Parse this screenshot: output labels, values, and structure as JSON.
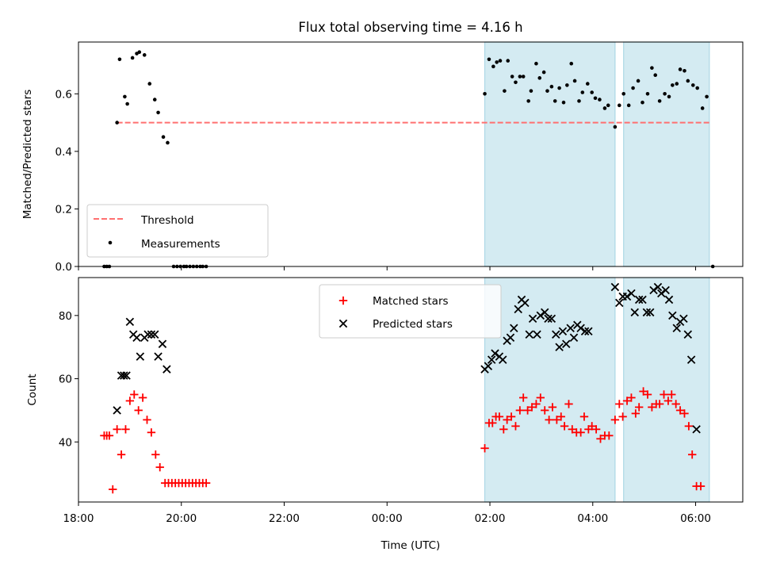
{
  "chart_data": {
    "title": "Flux total observing time = 4.16 h",
    "xlabel": "Time (UTC)",
    "xlim": [
      "18:00",
      "06:55"
    ],
    "x_ticks": [
      "18:00",
      "20:00",
      "22:00",
      "00:00",
      "02:00",
      "04:00",
      "06:00"
    ],
    "shaded_intervals": [
      [
        "01:54",
        "04:26"
      ],
      [
        "04:36",
        "06:16"
      ]
    ],
    "colors": {
      "shade": "#add8e6",
      "threshold": "#ff7070",
      "matched": "#ff0000",
      "predicted": "#000000",
      "measurements": "#000000"
    },
    "panels": [
      {
        "type": "scatter",
        "ylabel": "Matched/Predicted stars",
        "ylim": [
          0,
          0.78
        ],
        "y_ticks": [
          "0.0",
          "0.2",
          "0.4",
          "0.6"
        ],
        "legend_position": "lower-left",
        "threshold": {
          "name": "Threshold",
          "value": 0.5,
          "x_range": [
            "18:45",
            "06:16"
          ]
        },
        "series": [
          {
            "name": "Measurements",
            "points": [
              [
                "18:30",
                0
              ],
              [
                "18:33",
                0
              ],
              [
                "18:36",
                0
              ],
              [
                "18:45",
                0.5
              ],
              [
                "18:48",
                0.72
              ],
              [
                "18:54",
                0.59
              ],
              [
                "18:57",
                0.565
              ],
              [
                "19:03",
                0.725
              ],
              [
                "19:08",
                0.74
              ],
              [
                "19:11",
                0.745
              ],
              [
                "19:17",
                0.735
              ],
              [
                "19:23",
                0.635
              ],
              [
                "19:29",
                0.58
              ],
              [
                "19:33",
                0.535
              ],
              [
                "19:39",
                0.45
              ],
              [
                "19:44",
                0.43
              ],
              [
                "19:51",
                0
              ],
              [
                "19:55",
                0
              ],
              [
                "19:59",
                0
              ],
              [
                "20:03",
                0
              ],
              [
                "20:06",
                0
              ],
              [
                "20:10",
                0
              ],
              [
                "20:14",
                0
              ],
              [
                "20:18",
                0
              ],
              [
                "20:22",
                0
              ],
              [
                "20:25",
                0
              ],
              [
                "20:29",
                0
              ],
              [
                "01:54",
                0.6
              ],
              [
                "01:59",
                0.72
              ],
              [
                "02:04",
                0.695
              ],
              [
                "02:08",
                0.71
              ],
              [
                "02:12",
                0.715
              ],
              [
                "02:17",
                0.61
              ],
              [
                "02:21",
                0.715
              ],
              [
                "02:26",
                0.66
              ],
              [
                "02:30",
                0.64
              ],
              [
                "02:35",
                0.66
              ],
              [
                "02:39",
                0.66
              ],
              [
                "02:45",
                0.575
              ],
              [
                "02:48",
                0.61
              ],
              [
                "02:54",
                0.705
              ],
              [
                "02:58",
                0.655
              ],
              [
                "03:03",
                0.675
              ],
              [
                "03:07",
                0.61
              ],
              [
                "03:12",
                0.625
              ],
              [
                "03:16",
                0.575
              ],
              [
                "03:21",
                0.62
              ],
              [
                "03:26",
                0.57
              ],
              [
                "03:30",
                0.63
              ],
              [
                "03:35",
                0.705
              ],
              [
                "03:39",
                0.645
              ],
              [
                "03:44",
                0.575
              ],
              [
                "03:48",
                0.605
              ],
              [
                "03:54",
                0.635
              ],
              [
                "03:59",
                0.605
              ],
              [
                "04:03",
                0.585
              ],
              [
                "04:08",
                0.58
              ],
              [
                "04:14",
                0.55
              ],
              [
                "04:18",
                0.56
              ],
              [
                "04:26",
                0.485
              ],
              [
                "04:31",
                0.56
              ],
              [
                "04:36",
                0.6
              ],
              [
                "04:42",
                0.56
              ],
              [
                "04:47",
                0.62
              ],
              [
                "04:53",
                0.645
              ],
              [
                "04:58",
                0.57
              ],
              [
                "05:04",
                0.6
              ],
              [
                "05:09",
                0.69
              ],
              [
                "05:13",
                0.665
              ],
              [
                "05:18",
                0.575
              ],
              [
                "05:24",
                0.6
              ],
              [
                "05:29",
                0.59
              ],
              [
                "05:33",
                0.63
              ],
              [
                "05:38",
                0.635
              ],
              [
                "05:42",
                0.685
              ],
              [
                "05:47",
                0.68
              ],
              [
                "05:51",
                0.645
              ],
              [
                "05:57",
                0.63
              ],
              [
                "06:02",
                0.62
              ],
              [
                "06:08",
                0.55
              ],
              [
                "06:13",
                0.59
              ],
              [
                "06:20",
                0
              ]
            ]
          }
        ]
      },
      {
        "type": "scatter",
        "ylabel": "Count",
        "ylim": [
          21,
          92
        ],
        "y_ticks": [
          "40",
          "60",
          "80"
        ],
        "legend_position": "upper-center",
        "series": [
          {
            "name": "Matched stars",
            "marker": "+",
            "points": [
              [
                "18:30",
                42
              ],
              [
                "18:33",
                42
              ],
              [
                "18:36",
                42
              ],
              [
                "18:40",
                25
              ],
              [
                "18:45",
                44
              ],
              [
                "18:50",
                36
              ],
              [
                "18:55",
                44
              ],
              [
                "19:00",
                53
              ],
              [
                "19:05",
                55
              ],
              [
                "19:10",
                50
              ],
              [
                "19:15",
                54
              ],
              [
                "19:20",
                47
              ],
              [
                "19:25",
                43
              ],
              [
                "19:30",
                36
              ],
              [
                "19:35",
                32
              ],
              [
                "19:41",
                27
              ],
              [
                "19:45",
                27
              ],
              [
                "19:49",
                27
              ],
              [
                "19:53",
                27
              ],
              [
                "19:57",
                27
              ],
              [
                "20:01",
                27
              ],
              [
                "20:05",
                27
              ],
              [
                "20:09",
                27
              ],
              [
                "20:13",
                27
              ],
              [
                "20:17",
                27
              ],
              [
                "20:21",
                27
              ],
              [
                "20:25",
                27
              ],
              [
                "20:29",
                27
              ],
              [
                "01:54",
                38
              ],
              [
                "01:59",
                46
              ],
              [
                "02:03",
                46
              ],
              [
                "02:07",
                48
              ],
              [
                "02:11",
                48
              ],
              [
                "02:16",
                44
              ],
              [
                "02:20",
                47
              ],
              [
                "02:25",
                48
              ],
              [
                "02:30",
                45
              ],
              [
                "02:35",
                50
              ],
              [
                "02:39",
                54
              ],
              [
                "02:44",
                50
              ],
              [
                "02:49",
                51
              ],
              [
                "02:54",
                52
              ],
              [
                "02:59",
                54
              ],
              [
                "03:04",
                50
              ],
              [
                "03:09",
                47
              ],
              [
                "03:13",
                51
              ],
              [
                "03:18",
                47
              ],
              [
                "03:23",
                48
              ],
              [
                "03:27",
                45
              ],
              [
                "03:32",
                52
              ],
              [
                "03:36",
                44
              ],
              [
                "03:41",
                43
              ],
              [
                "03:46",
                43
              ],
              [
                "03:50",
                48
              ],
              [
                "03:55",
                44
              ],
              [
                "03:59",
                45
              ],
              [
                "04:04",
                44
              ],
              [
                "04:09",
                41
              ],
              [
                "04:14",
                42
              ],
              [
                "04:19",
                42
              ],
              [
                "04:26",
                47
              ],
              [
                "04:31",
                52
              ],
              [
                "04:35",
                48
              ],
              [
                "04:40",
                53
              ],
              [
                "04:45",
                54
              ],
              [
                "04:50",
                49
              ],
              [
                "04:54",
                51
              ],
              [
                "04:59",
                56
              ],
              [
                "05:04",
                55
              ],
              [
                "05:09",
                51
              ],
              [
                "05:14",
                52
              ],
              [
                "05:18",
                52
              ],
              [
                "05:23",
                55
              ],
              [
                "05:28",
                53
              ],
              [
                "05:32",
                55
              ],
              [
                "05:37",
                52
              ],
              [
                "05:42",
                50
              ],
              [
                "05:47",
                49
              ],
              [
                "05:52",
                45
              ],
              [
                "05:56",
                36
              ],
              [
                "06:01",
                26
              ],
              [
                "06:06",
                26
              ]
            ]
          },
          {
            "name": "Predicted stars",
            "marker": "x",
            "points": [
              [
                "18:45",
                50
              ],
              [
                "18:50",
                61
              ],
              [
                "18:53",
                61
              ],
              [
                "18:56",
                61
              ],
              [
                "19:00",
                78
              ],
              [
                "19:04",
                74
              ],
              [
                "19:08",
                73
              ],
              [
                "19:12",
                67
              ],
              [
                "19:17",
                73
              ],
              [
                "19:21",
                74
              ],
              [
                "19:25",
                74
              ],
              [
                "19:29",
                74
              ],
              [
                "19:33",
                67
              ],
              [
                "19:38",
                71
              ],
              [
                "19:43",
                63
              ],
              [
                "01:54",
                63
              ],
              [
                "01:58",
                64
              ],
              [
                "02:02",
                66
              ],
              [
                "02:06",
                68
              ],
              [
                "02:11",
                67
              ],
              [
                "02:15",
                66
              ],
              [
                "02:20",
                72
              ],
              [
                "02:24",
                73
              ],
              [
                "02:28",
                76
              ],
              [
                "02:33",
                82
              ],
              [
                "02:37",
                85
              ],
              [
                "02:41",
                84
              ],
              [
                "02:46",
                74
              ],
              [
                "02:50",
                79
              ],
              [
                "02:55",
                74
              ],
              [
                "02:59",
                80
              ],
              [
                "03:04",
                81
              ],
              [
                "03:08",
                79
              ],
              [
                "03:12",
                79
              ],
              [
                "03:17",
                74
              ],
              [
                "03:21",
                70
              ],
              [
                "03:25",
                75
              ],
              [
                "03:29",
                71
              ],
              [
                "03:34",
                76
              ],
              [
                "03:38",
                73
              ],
              [
                "03:42",
                77
              ],
              [
                "03:46",
                76
              ],
              [
                "03:51",
                75
              ],
              [
                "03:55",
                75
              ],
              [
                "04:26",
                89
              ],
              [
                "04:31",
                84
              ],
              [
                "04:35",
                86
              ],
              [
                "04:40",
                86
              ],
              [
                "04:45",
                87
              ],
              [
                "04:49",
                81
              ],
              [
                "04:54",
                85
              ],
              [
                "04:58",
                85
              ],
              [
                "05:03",
                81
              ],
              [
                "05:07",
                81
              ],
              [
                "05:11",
                88
              ],
              [
                "05:16",
                89
              ],
              [
                "05:20",
                87
              ],
              [
                "05:25",
                88
              ],
              [
                "05:29",
                85
              ],
              [
                "05:33",
                80
              ],
              [
                "05:38",
                76
              ],
              [
                "05:42",
                78
              ],
              [
                "05:46",
                79
              ],
              [
                "05:51",
                74
              ],
              [
                "05:55",
                66
              ],
              [
                "06:01",
                44
              ]
            ]
          }
        ]
      }
    ]
  }
}
